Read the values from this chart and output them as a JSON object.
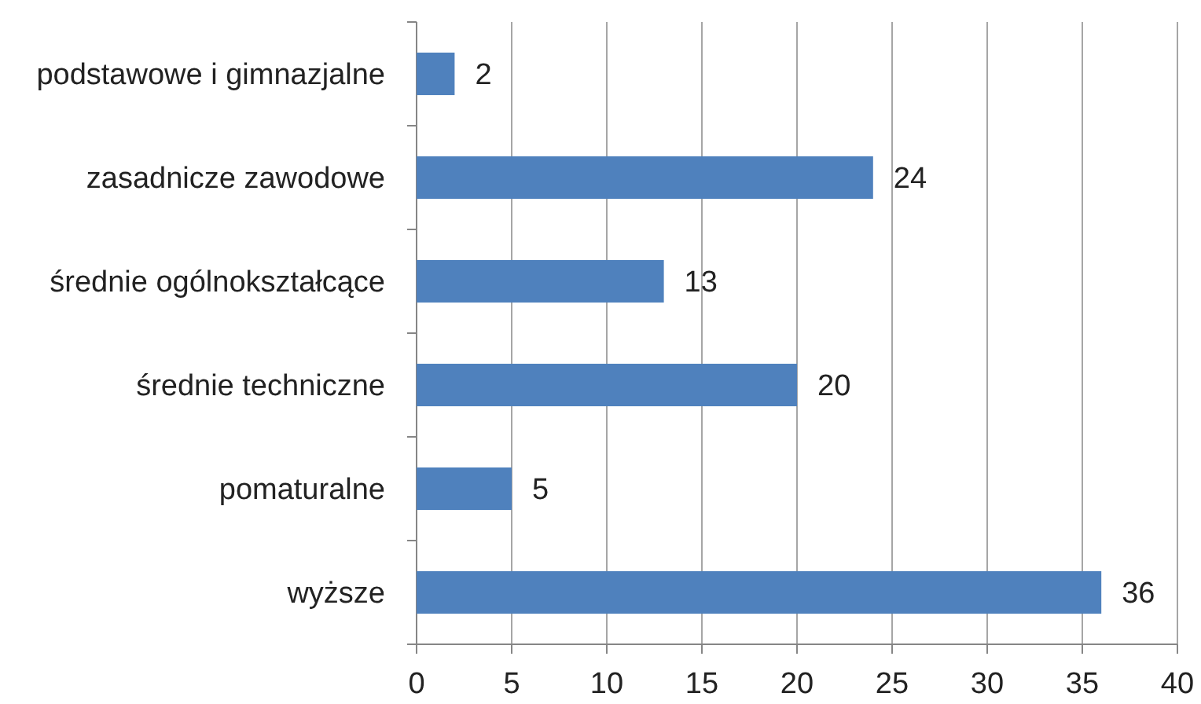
{
  "chart_data": {
    "type": "bar",
    "orientation": "horizontal",
    "categories": [
      "podstawowe i gimnazjalne",
      "zasadnicze zawodowe",
      "średnie ogólnokształcące",
      "średnie techniczne",
      "pomaturalne",
      "wyższe"
    ],
    "values": [
      2,
      24,
      13,
      20,
      5,
      36
    ],
    "color": "#4f81bd",
    "xlim": [
      0,
      40
    ],
    "xticks": [
      0,
      5,
      10,
      15,
      20,
      25,
      30,
      35,
      40
    ],
    "grid": "x",
    "data_labels": true
  }
}
